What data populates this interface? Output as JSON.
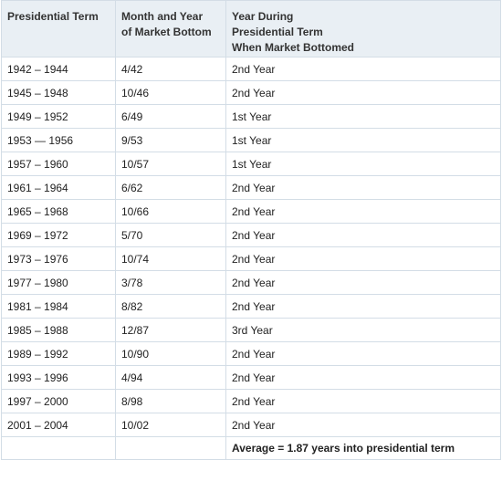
{
  "headers": [
    [
      "Presidential Term"
    ],
    [
      "Month and Year",
      "of Market Bottom"
    ],
    [
      "Year During",
      "Presidential Term",
      "When Market Bottomed"
    ]
  ],
  "rows": [
    [
      "1942 – 1944",
      "4/42",
      "2nd Year"
    ],
    [
      "1945 – 1948",
      "10/46",
      "2nd Year"
    ],
    [
      "1949 – 1952",
      "6/49",
      "1st Year"
    ],
    [
      "1953 — 1956",
      "9/53",
      "1st Year"
    ],
    [
      "1957 – 1960",
      "10/57",
      "1st Year"
    ],
    [
      "1961 – 1964",
      "6/62",
      "2nd Year"
    ],
    [
      "1965 – 1968",
      "10/66",
      "2nd Year"
    ],
    [
      "1969 – 1972",
      "5/70",
      "2nd Year"
    ],
    [
      "1973 – 1976",
      "10/74",
      "2nd Year"
    ],
    [
      "1977 – 1980",
      "3/78",
      "2nd Year"
    ],
    [
      "1981 – 1984",
      "8/82",
      "2nd Year"
    ],
    [
      "1985 – 1988",
      "12/87",
      "3rd Year"
    ],
    [
      "1989 – 1992",
      "10/90",
      "2nd Year"
    ],
    [
      "1993 – 1996",
      "4/94",
      "2nd Year"
    ],
    [
      "1997 – 2000",
      "8/98",
      "2nd Year"
    ],
    [
      "2001 – 2004",
      "10/02",
      "2nd Year"
    ]
  ],
  "footer": {
    "average": "Average = 1.87 years into presidential term"
  }
}
